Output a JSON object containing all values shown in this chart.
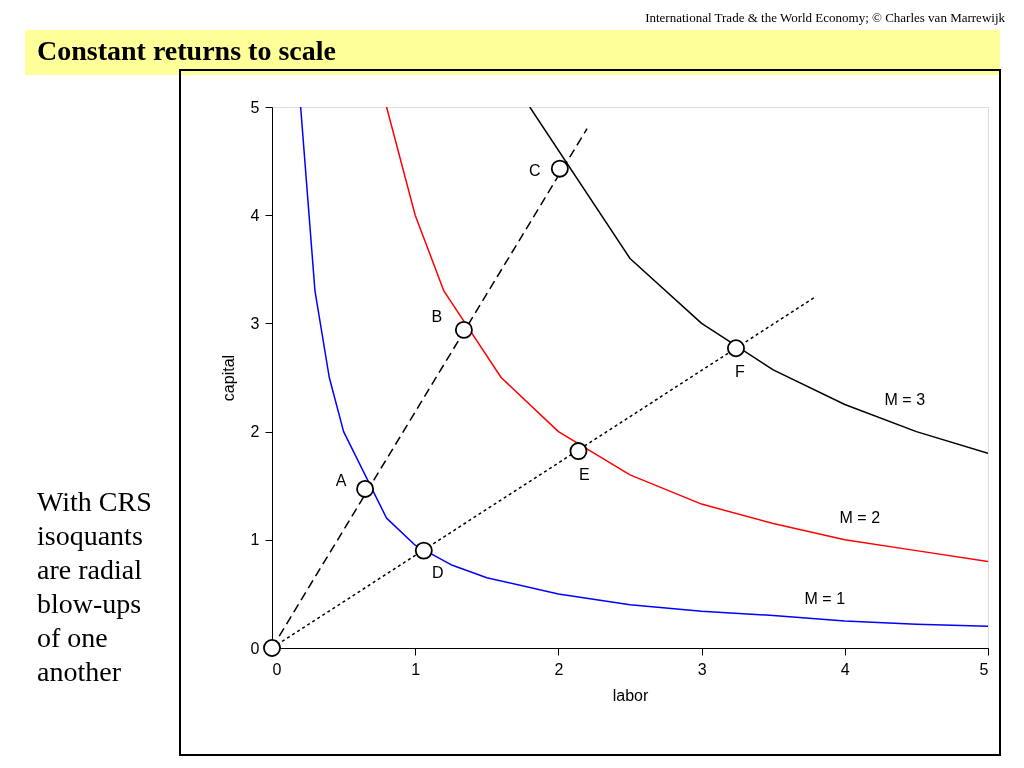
{
  "chart_data": {
    "type": "line",
    "title": "Constant returns to scale",
    "xlabel": "labor",
    "ylabel": "capital",
    "xlim": [
      0,
      5
    ],
    "ylim": [
      0,
      5
    ],
    "xticks": [
      0,
      1,
      2,
      3,
      4,
      5
    ],
    "yticks": [
      0,
      1,
      2,
      3,
      4,
      5
    ],
    "grid": false,
    "series": [
      {
        "name": "M = 1",
        "color": "#0000ff",
        "line_style": "solid",
        "marker": "none",
        "x": [
          0.2,
          0.3,
          0.4,
          0.5,
          0.8,
          1.0,
          1.25,
          1.5,
          2.0,
          2.5,
          3.0,
          3.5,
          4.0,
          4.5,
          5.0
        ],
        "values": [
          5.0,
          3.3,
          2.5,
          2.0,
          1.2,
          0.95,
          0.77,
          0.65,
          0.5,
          0.4,
          0.34,
          0.3,
          0.25,
          0.22,
          0.2
        ]
      },
      {
        "name": "M = 2",
        "color": "#ff0000",
        "line_style": "solid",
        "marker": "none",
        "x": [
          0.8,
          1.0,
          1.2,
          1.6,
          2.0,
          2.5,
          3.0,
          3.5,
          4.0,
          4.5,
          5.0
        ],
        "values": [
          5.0,
          4.0,
          3.3,
          2.5,
          2.0,
          1.6,
          1.33,
          1.15,
          1.0,
          0.9,
          0.8
        ]
      },
      {
        "name": "M = 3",
        "color": "#000000",
        "line_style": "solid",
        "marker": "none",
        "x": [
          1.8,
          2.5,
          3.0,
          3.5,
          4.0,
          4.5,
          5.0
        ],
        "values": [
          5.0,
          3.6,
          3.0,
          2.57,
          2.25,
          2.0,
          1.8
        ]
      },
      {
        "color": "#000000",
        "line_style": "dashed",
        "marker": "none",
        "x": [
          0,
          2.2
        ],
        "values": [
          0,
          4.8
        ]
      },
      {
        "color": "#000000",
        "line_style": "dotted",
        "marker": "none",
        "x": [
          0,
          3.8
        ],
        "values": [
          0,
          3.25
        ]
      },
      {
        "type": "scatter",
        "color": "#000000",
        "marker": "circle",
        "x": [
          0,
          0.65,
          1.34,
          2.01,
          1.06,
          2.14,
          3.24
        ],
        "values": [
          0,
          1.47,
          2.94,
          4.43,
          0.9,
          1.82,
          2.77
        ],
        "value_labels": [
          null,
          "A",
          "B",
          "C",
          "D",
          "E",
          "F"
        ]
      }
    ],
    "annotations": [
      "International Trade & the World Economy;  © Charles van Marrewijk",
      "With CRS isoquants are radial blow-ups of one another"
    ]
  }
}
